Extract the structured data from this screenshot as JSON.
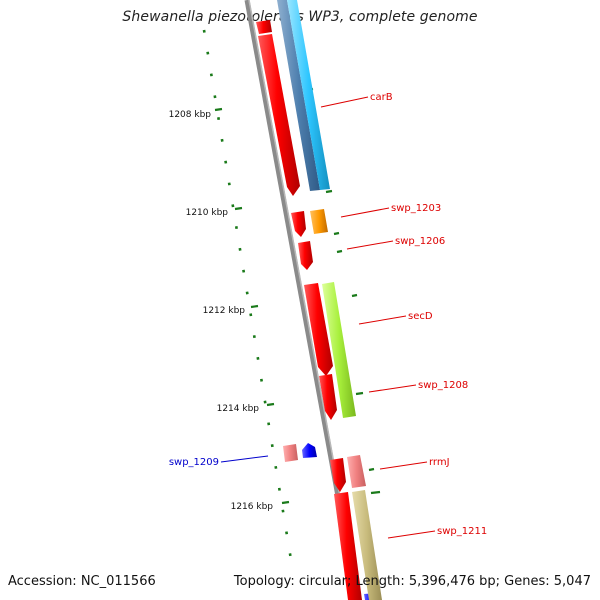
{
  "title": "Shewanella piezotolerans WP3, complete genome",
  "footer": {
    "accession": "Accession: NC_011566",
    "summary": "Topology: circular; Length: 5,396,476 bp; Genes: 5,047"
  },
  "colors": {
    "backbone": "#8a8a8a",
    "tick": "#1a7a1a",
    "tick_label": "#111111",
    "forward_gene_label": "#dd0000",
    "reverse_gene_label": "#0000cc"
  },
  "scale_labels": [
    {
      "kbp": 1208,
      "text": "1208 kbp"
    },
    {
      "kbp": 1210,
      "text": "1210 kbp"
    },
    {
      "kbp": 1212,
      "text": "1212 kbp"
    },
    {
      "kbp": 1214,
      "text": "1214 kbp"
    },
    {
      "kbp": 1216,
      "text": "1216 kbp"
    }
  ],
  "feature_labels": [
    {
      "text": "carB",
      "strand": "forward"
    },
    {
      "text": "swp_1203",
      "strand": "forward"
    },
    {
      "text": "swp_1206",
      "strand": "forward"
    },
    {
      "text": "secD",
      "strand": "forward"
    },
    {
      "text": "swp_1208",
      "strand": "forward"
    },
    {
      "text": "swp_1209",
      "strand": "reverse"
    },
    {
      "text": "rrmJ",
      "strand": "forward"
    },
    {
      "text": "swp_1211",
      "strand": "forward"
    }
  ]
}
